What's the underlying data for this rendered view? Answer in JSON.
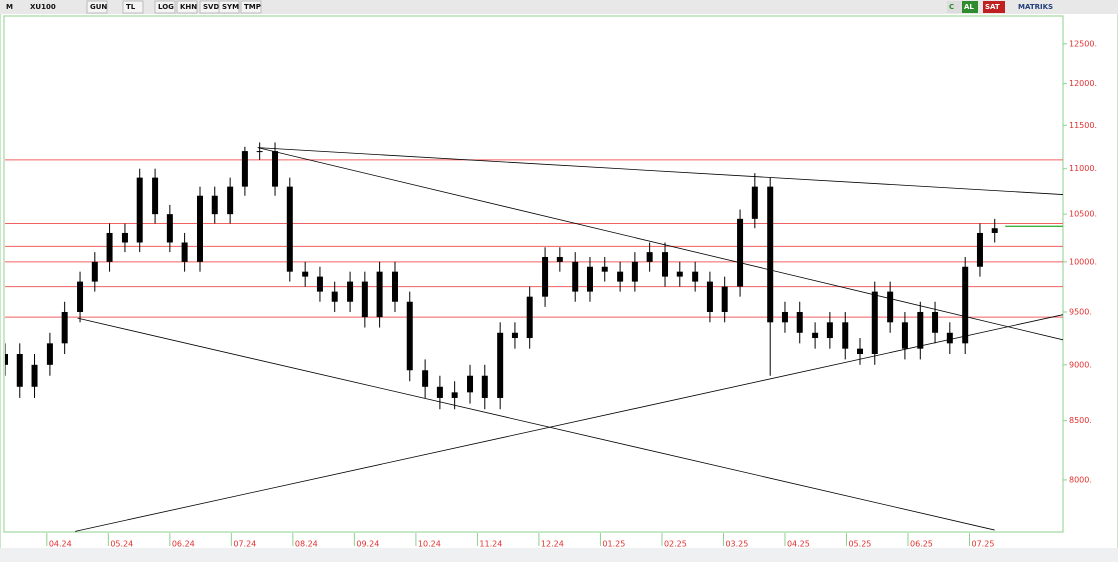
{
  "toolbar": {
    "logo": "M",
    "symbol": "XU100",
    "buttons": [
      "GUN",
      "TL",
      "LOG",
      "KHN",
      "SVD",
      "SYM",
      "TMP"
    ],
    "right": [
      "C",
      "AL",
      "SAT",
      "MATRIKS"
    ]
  },
  "chart_data": {
    "type": "candlestick",
    "log_scale": true,
    "color": "#000000",
    "x": [
      -0.68,
      -0.44,
      -0.2,
      0.05,
      0.29,
      0.54,
      0.78,
      1.02,
      1.27,
      1.51,
      1.76,
      2.0,
      2.24,
      2.49,
      2.73,
      2.98,
      3.22,
      3.46,
      3.71,
      3.95,
      4.2,
      4.44,
      4.68,
      4.93,
      5.17,
      5.41,
      5.66,
      5.9,
      6.15,
      6.39,
      6.63,
      6.88,
      7.12,
      7.37,
      7.61,
      7.85,
      8.1,
      8.34,
      8.59,
      8.83,
      9.07,
      9.32,
      9.56,
      9.8,
      10.05,
      10.29,
      10.54,
      10.78,
      11.02,
      11.27,
      11.51,
      11.76,
      12.0,
      12.24,
      12.49,
      12.73,
      12.98,
      13.22,
      13.46,
      13.71,
      13.95,
      14.2,
      14.44,
      14.68,
      14.93,
      15.17,
      15.41
    ],
    "open": [
      9000,
      9100,
      8800,
      9000,
      9200,
      9500,
      9800,
      10000,
      10300,
      10200,
      10900,
      10500,
      10200,
      10000,
      10700,
      10500,
      10800,
      11200,
      11200,
      10800,
      9900,
      9850,
      9700,
      9600,
      9800,
      9450,
      9900,
      9600,
      8950,
      8800,
      8700,
      8750,
      8900,
      8700,
      9300,
      9250,
      9650,
      10050,
      10000,
      9700,
      9950,
      9900,
      9800,
      10000,
      10100,
      9850,
      9900,
      9800,
      9500,
      9750,
      10450,
      10800,
      9400,
      9500,
      9300,
      9250,
      9400,
      9150,
      9100,
      9700,
      9400,
      9150,
      9500,
      9300,
      9200,
      9950,
      10300
    ],
    "high": [
      9200,
      9200,
      9100,
      9300,
      9600,
      9900,
      10100,
      10400,
      10400,
      11000,
      11000,
      10600,
      10300,
      10800,
      10800,
      10900,
      11250,
      11300,
      11300,
      10900,
      10000,
      9950,
      9800,
      9900,
      9900,
      10000,
      10000,
      9700,
      9050,
      8900,
      8850,
      9000,
      9000,
      9400,
      9400,
      9750,
      10150,
      10150,
      10100,
      10050,
      10050,
      10000,
      10100,
      10200,
      10200,
      10000,
      10000,
      9900,
      9850,
      10550,
      10950,
      10900,
      9600,
      9600,
      9400,
      9500,
      9500,
      9250,
      9800,
      9800,
      9500,
      9600,
      9600,
      9400,
      10050,
      10400,
      10450
    ],
    "low": [
      8900,
      8700,
      8700,
      8900,
      9100,
      9400,
      9700,
      9900,
      10100,
      10100,
      10400,
      10100,
      9900,
      9900,
      10400,
      10400,
      10700,
      11100,
      10700,
      9800,
      9750,
      9600,
      9500,
      9500,
      9350,
      9350,
      9500,
      8850,
      8700,
      8600,
      8600,
      8650,
      8600,
      8600,
      9150,
      9150,
      9550,
      9900,
      9600,
      9600,
      9800,
      9700,
      9700,
      9900,
      9750,
      9750,
      9700,
      9400,
      9400,
      9650,
      10350,
      8900,
      9300,
      9200,
      9150,
      9150,
      9050,
      9000,
      9000,
      9300,
      9050,
      9050,
      9200,
      9100,
      9100,
      9850,
      10200
    ],
    "close": [
      9100,
      8800,
      9000,
      9200,
      9500,
      9800,
      10000,
      10300,
      10200,
      10900,
      10500,
      10200,
      10000,
      10700,
      10500,
      10800,
      11200,
      11200,
      10800,
      9900,
      9850,
      9700,
      9600,
      9800,
      9450,
      9900,
      9600,
      8950,
      8800,
      8700,
      8750,
      8900,
      8700,
      9300,
      9250,
      9650,
      10050,
      10000,
      9700,
      9950,
      9900,
      9800,
      10000,
      10100,
      9850,
      9900,
      9800,
      9500,
      9750,
      10450,
      10800,
      9400,
      9500,
      9300,
      9250,
      9400,
      9150,
      9100,
      9700,
      9400,
      9150,
      9500,
      9300,
      9200,
      9950,
      10300,
      10350
    ],
    "levels": [
      11100,
      10400,
      10160,
      10000,
      9750,
      9450
    ],
    "level_color": "#f06060",
    "trendlines": [
      {
        "x": [
          3.43,
          16.52
        ],
        "y": [
          11240,
          10713
        ],
        "color": "#000000"
      },
      {
        "x": [
          3.43,
          16.52
        ],
        "y": [
          11240,
          9233
        ],
        "color": "#000000"
      },
      {
        "x": [
          0.5,
          15.41
        ],
        "y": [
          9440,
          7600
        ],
        "color": "#000000"
      },
      {
        "x": [
          0.46,
          16.52
        ],
        "y": [
          7590,
          9474
        ],
        "color": "#000000"
      },
      {
        "x": [
          15.58,
          16.52
        ],
        "y": [
          10370,
          10370
        ],
        "color": "#3cb43c"
      }
    ],
    "xlim": [
      -0.68,
      16.52
    ],
    "xticks": [
      {
        "value": 0,
        "label": "04.24"
      },
      {
        "value": 1,
        "label": "05.24"
      },
      {
        "value": 2,
        "label": "06.24"
      },
      {
        "value": 3,
        "label": "07.24"
      },
      {
        "value": 4,
        "label": "08.24"
      },
      {
        "value": 5,
        "label": "09.24"
      },
      {
        "value": 6,
        "label": "10.24"
      },
      {
        "value": 7,
        "label": "11.24"
      },
      {
        "value": 8,
        "label": "12.24"
      },
      {
        "value": 9,
        "label": "01.25"
      },
      {
        "value": 10,
        "label": "02.25"
      },
      {
        "value": 11,
        "label": "03.25"
      },
      {
        "value": 12,
        "label": "04.25"
      },
      {
        "value": 13,
        "label": "05.25"
      },
      {
        "value": 14,
        "label": "06.25"
      },
      {
        "value": 15,
        "label": "07.25"
      }
    ],
    "ylim": [
      7616,
      12834
    ],
    "yticks": [
      {
        "value": 8000,
        "label": "8000."
      },
      {
        "value": 8500,
        "label": "8500."
      },
      {
        "value": 9000,
        "label": "9000."
      },
      {
        "value": 9500,
        "label": "9500."
      },
      {
        "value": 10000,
        "label": "10000."
      },
      {
        "value": 10500,
        "label": "10500."
      },
      {
        "value": 11000,
        "label": "11000."
      },
      {
        "value": 11500,
        "label": "11500."
      },
      {
        "value": 12000,
        "label": "12000."
      },
      {
        "value": 12500,
        "label": "12500."
      }
    ]
  }
}
